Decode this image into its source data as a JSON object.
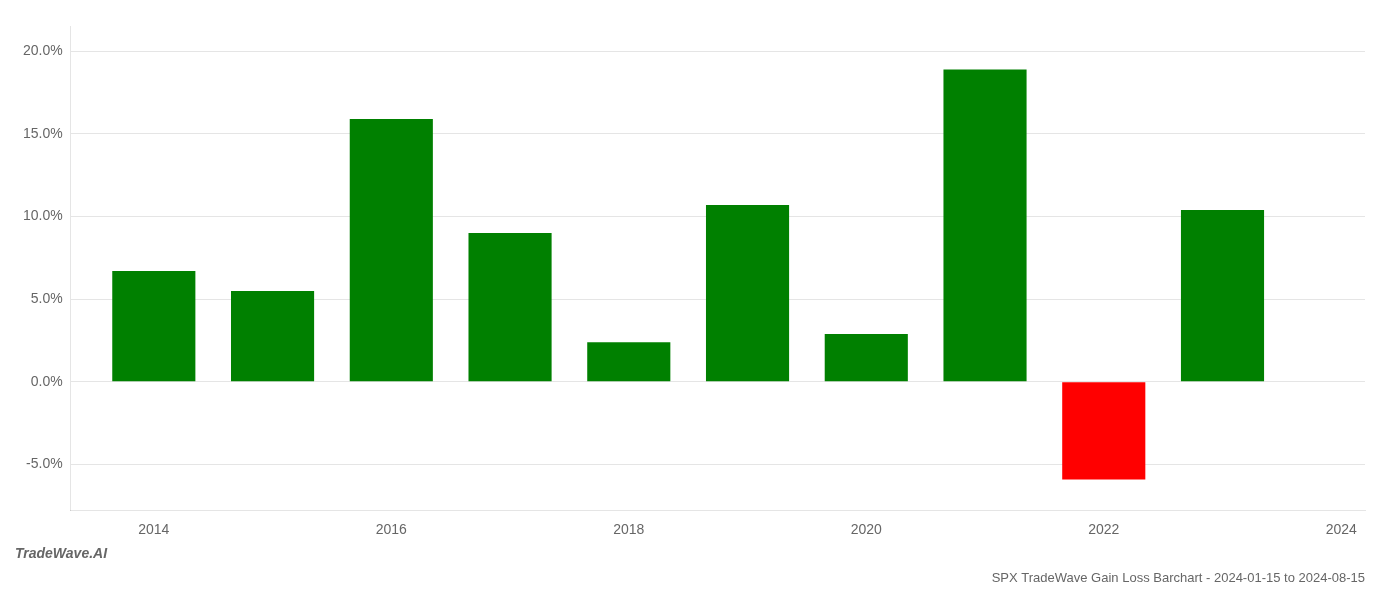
{
  "chart_data": {
    "type": "bar",
    "title": "SPX TradeWave Gain Loss Barchart - 2024-01-15 to 2024-08-15",
    "annotations": [
      "TradeWave.AI"
    ],
    "x": [
      2014,
      2015,
      2016,
      2017,
      2018,
      2019,
      2020,
      2021,
      2022,
      2023
    ],
    "values": [
      0.067,
      0.055,
      0.159,
      0.09,
      0.024,
      0.107,
      0.029,
      0.189,
      -0.059,
      0.104
    ],
    "colors": [
      "#008000",
      "#008000",
      "#008000",
      "#008000",
      "#008000",
      "#008000",
      "#008000",
      "#008000",
      "#ff0000",
      "#008000"
    ],
    "xlim": [
      2013.3,
      2024.2
    ],
    "xticks": [
      2014,
      2016,
      2018,
      2020,
      2022,
      2024
    ],
    "ylim": [
      -0.078,
      0.215
    ],
    "yticks": [
      {
        "value": -0.05,
        "label": "-5.0%"
      },
      {
        "value": 0.0,
        "label": "0.0%"
      },
      {
        "value": 0.05,
        "label": "5.0%"
      },
      {
        "value": 0.1,
        "label": "10.0%"
      },
      {
        "value": 0.15,
        "label": "15.0%"
      },
      {
        "value": 0.2,
        "label": "20.0%"
      }
    ],
    "grid": true
  }
}
